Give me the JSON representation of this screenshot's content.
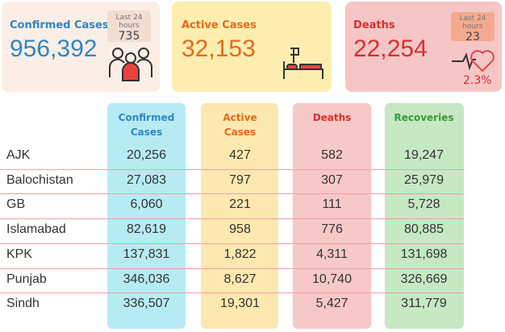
{
  "cards": [
    {
      "label": "Confirmed Cases",
      "value": "956,392",
      "sub_label": "Last 24 hours",
      "sub_value": "735"
    },
    {
      "label": "Active Cases",
      "value": "32,153"
    },
    {
      "label": "Deaths",
      "value": "22,254",
      "sub_label": "Last 24 hours",
      "sub_value": "23",
      "percent": "2.3%"
    }
  ],
  "table": {
    "columns": [
      "Confirmed Cases",
      "Active Cases",
      "Deaths",
      "Recoveries"
    ],
    "rows": [
      [
        "AJK",
        "20,256",
        "427",
        "582",
        "19,247"
      ],
      [
        "Balochistan",
        "27,083",
        "797",
        "307",
        "25,979"
      ],
      [
        "GB",
        "6,060",
        "221",
        "111",
        "5,728"
      ],
      [
        "Islamabad",
        "82,619",
        "958",
        "776",
        "80,885"
      ],
      [
        "KPK",
        "137,831",
        "1,822",
        "4,311",
        "131,698"
      ],
      [
        "Punjab",
        "346,036",
        "8,627",
        "10,740",
        "326,669"
      ],
      [
        "Sindh",
        "336,507",
        "19,301",
        "5,427",
        "311,779"
      ]
    ]
  }
}
